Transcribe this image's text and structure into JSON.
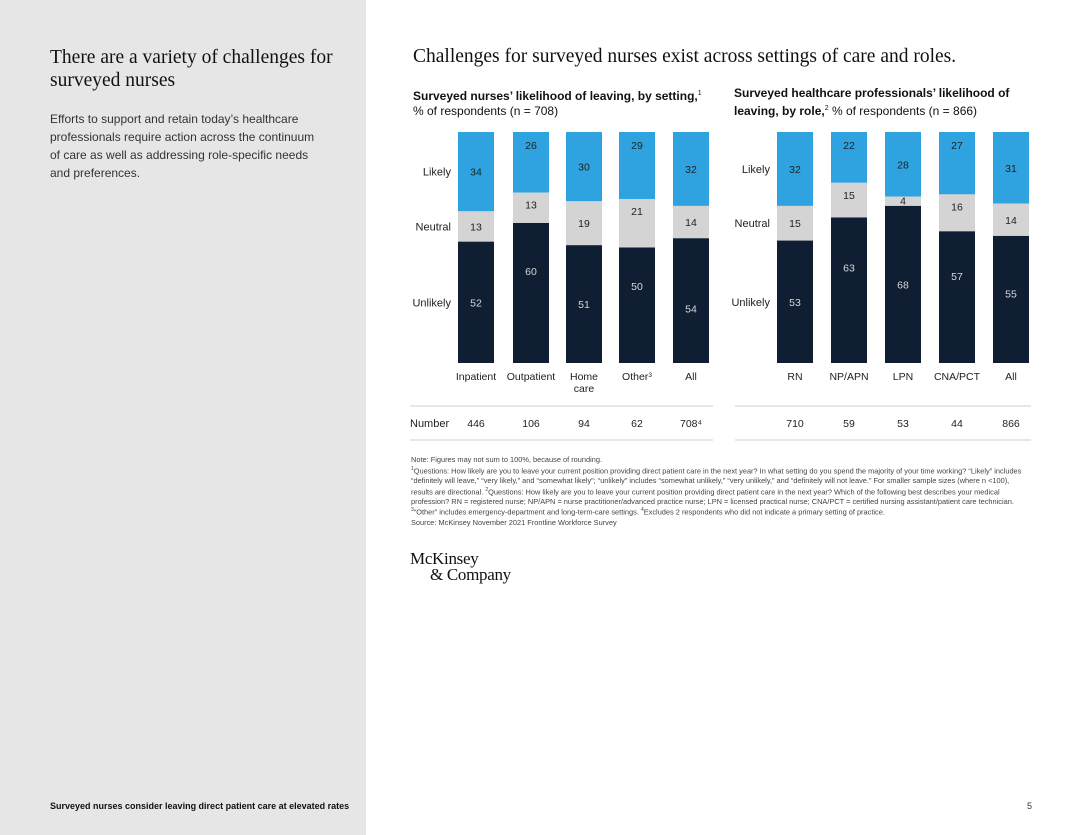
{
  "sidebar": {
    "title": "There are a variety of challenges for surveyed nurses",
    "body": "Efforts to support and retain today’s healthcare professionals require action across the continuum of care as well as addressing role-specific needs and preferences.",
    "footer": "Surveyed nurses consider leaving direct patient care at elevated rates"
  },
  "page_number": "5",
  "main_title": "Challenges for surveyed nurses exist across settings of care and roles.",
  "colors": {
    "likely": "#2fa3df",
    "neutral": "#d4d4d4",
    "unlikely": "#0f1e33"
  },
  "chart_data": [
    {
      "type": "bar",
      "stacked": true,
      "percent": true,
      "title": "Surveyed nurses’ likelihood of leaving, by setting,",
      "title_footnote": "1",
      "subtitle": "% of respondents (n = 708)",
      "categories": [
        "Inpatient",
        "Outpatient",
        "Home care",
        "Other",
        "All"
      ],
      "category_footnotes": [
        "",
        "",
        "",
        "3",
        ""
      ],
      "series": [
        {
          "name": "Likely",
          "values": [
            34,
            26,
            30,
            29,
            32
          ]
        },
        {
          "name": "Neutral",
          "values": [
            13,
            13,
            19,
            21,
            14
          ]
        },
        {
          "name": "Unlikely",
          "values": [
            52,
            60,
            51,
            50,
            54
          ]
        }
      ],
      "number_label": "Number",
      "numbers": [
        "446",
        "106",
        "94",
        "62",
        "708⁴"
      ]
    },
    {
      "type": "bar",
      "stacked": true,
      "percent": true,
      "title": "Surveyed healthcare professionals’ likelihood of leaving, by role,",
      "title_footnote": "2",
      "subtitle": "% of respondents (n = 866)",
      "categories": [
        "RN",
        "NP/APN",
        "LPN",
        "CNA/PCT",
        "All"
      ],
      "category_footnotes": [
        "",
        "",
        "",
        "",
        ""
      ],
      "series": [
        {
          "name": "Likely",
          "values": [
            32,
            22,
            28,
            27,
            31
          ]
        },
        {
          "name": "Neutral",
          "values": [
            15,
            15,
            4,
            16,
            14
          ]
        },
        {
          "name": "Unlikely",
          "values": [
            53,
            63,
            68,
            57,
            55
          ]
        }
      ],
      "numbers": [
        "710",
        "59",
        "53",
        "44",
        "866"
      ]
    }
  ],
  "notes": {
    "line1": "Note: Figures may not sum to 100%, because of rounding.",
    "fn1": "Questions: How likely are you to leave your current position providing direct patient care in the next year? In what setting do you spend the majority of your time working? “Likely” includes “definitely will leave,” “very likely,” and “somewhat likely”; “unlikely” includes “somewhat unlikely,” “very unlikely,” and “definitely will not leave.” For smaller sample sizes (where n <100), results are directional.",
    "fn2": "Questions: How likely are you to leave your current position providing direct patient care in the next year? Which of the following best describes your medical profession? RN = registered nurse; NP/APN = nurse practitioner/advanced practice nurse; LPN = licensed practical nurse; CNA/PCT = certified nursing assistant/patient care technician.",
    "fn3": "“Other” includes emergency-department and long-term-care settings.",
    "fn4": "Excludes 2 respondents who did not indicate a primary setting of practice.",
    "source": "Source: McKinsey November 2021 Frontline Workforce Survey"
  },
  "logo": {
    "line1": "McKinsey",
    "line2": "& Company"
  }
}
